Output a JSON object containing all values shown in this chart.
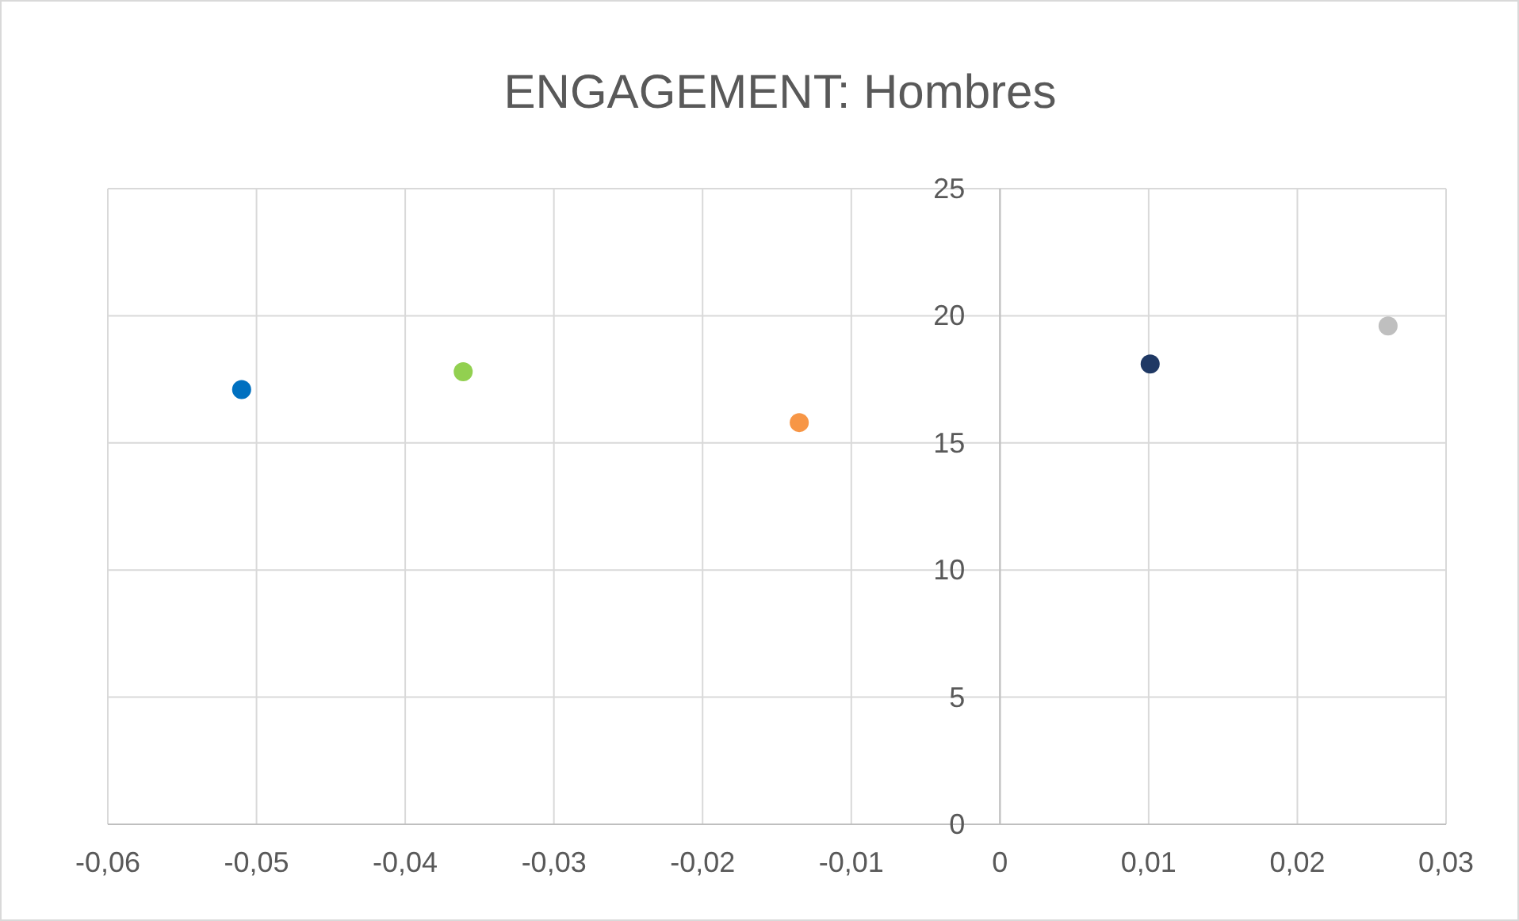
{
  "chart_data": {
    "type": "scatter",
    "title": "ENGAGEMENT: Hombres",
    "x": [
      -0.051,
      -0.0361,
      -0.0135,
      0.0101,
      0.0261
    ],
    "values": [
      17.1,
      17.8,
      15.8,
      18.1,
      19.6
    ],
    "colors": [
      "#0070c0",
      "#92d050",
      "#f79646",
      "#1f3864",
      "#bfbfbf"
    ],
    "xlim": [
      -0.06,
      0.03
    ],
    "xticks": [
      {
        "value": -0.06,
        "label": "-0,06"
      },
      {
        "value": -0.05,
        "label": "-0,05"
      },
      {
        "value": -0.04,
        "label": "-0,04"
      },
      {
        "value": -0.03,
        "label": "-0,03"
      },
      {
        "value": -0.02,
        "label": "-0,02"
      },
      {
        "value": -0.01,
        "label": "-0,01"
      },
      0,
      {
        "value": 0.01,
        "label": "0,01"
      },
      {
        "value": 0.02,
        "label": "0,02"
      },
      {
        "value": 0.03,
        "label": "0,03"
      }
    ],
    "ylim": [
      0,
      25
    ],
    "yticks": [
      0,
      5,
      10,
      15,
      20,
      25
    ],
    "grid": true,
    "marker": "circle"
  }
}
